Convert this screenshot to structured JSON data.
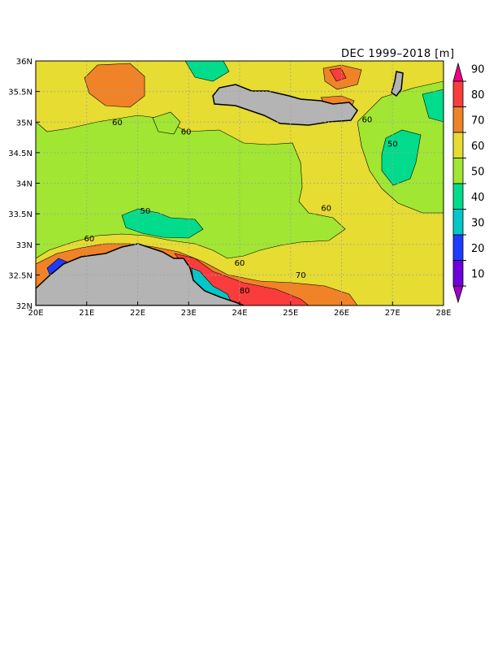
{
  "title": "DEC 1999–2018 [m]",
  "colors": {
    "land": "#b4b4b4",
    "mask": "#ffffff",
    "c_lt10": "#a000c8",
    "c_10_20": "#6e00dc",
    "c_20_30": "#1e3cff",
    "c_30_40": "#00c8c8",
    "c_40_50": "#00dc8c",
    "c_50_60": "#a0e632",
    "c_60_70": "#e6dc32",
    "c_70_80": "#f08228",
    "c_80_90": "#fa3c3c",
    "c_gt90": "#f00082",
    "grid": "#a0a0a0"
  },
  "map": {
    "lon_range": [
      20,
      28
    ],
    "lat_range": [
      32,
      36
    ],
    "lon_ticks": [
      "20E",
      "21E",
      "22E",
      "23E",
      "24E",
      "25E",
      "26E",
      "27E",
      "28E"
    ],
    "lat_ticks": [
      "32N",
      "32.5N",
      "33N",
      "33.5N",
      "34N",
      "34.5N",
      "35N",
      "35.5N",
      "36N"
    ],
    "contour_labels": [
      {
        "text": "60",
        "lon": 21.6,
        "lat": 34.95
      },
      {
        "text": "60",
        "lon": 22.95,
        "lat": 34.8
      },
      {
        "text": "60",
        "lon": 26.5,
        "lon2": 0,
        "lat": 35.0
      },
      {
        "text": "50",
        "lon": 27.0,
        "lat": 34.6
      },
      {
        "text": "60",
        "lon": 25.7,
        "lat": 33.55
      },
      {
        "text": "50",
        "lon": 22.15,
        "lat": 33.5
      },
      {
        "text": "60",
        "lon": 21.05,
        "lat": 33.05
      },
      {
        "text": "60",
        "lon": 24.0,
        "lat": 32.65
      },
      {
        "text": "70",
        "lon": 25.2,
        "lat": 32.45
      },
      {
        "text": "80",
        "lon": 24.1,
        "lat": 32.2
      }
    ]
  },
  "colorbar": {
    "levels": [
      "10",
      "20",
      "30",
      "40",
      "50",
      "60",
      "70",
      "80",
      "90"
    ]
  }
}
